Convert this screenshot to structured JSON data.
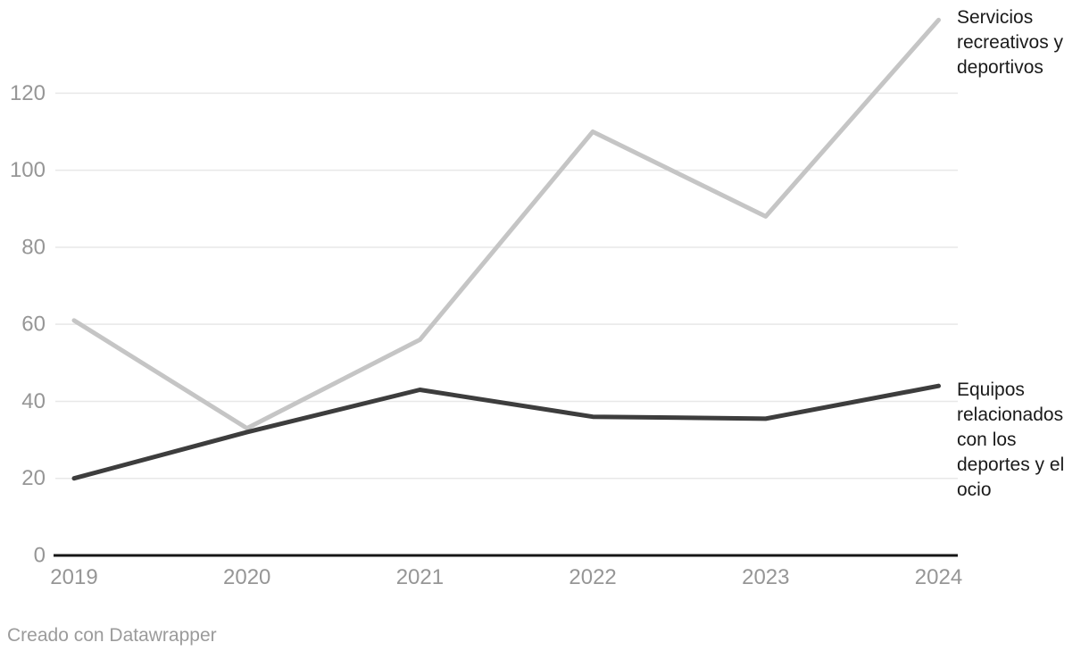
{
  "chart_data": {
    "type": "line",
    "x": [
      2019,
      2020,
      2021,
      2022,
      2023,
      2024
    ],
    "series": [
      {
        "name": "Servicios recreativos y deportivos",
        "values": [
          61,
          33,
          56,
          110,
          88,
          139
        ],
        "color": "#c5c5c5"
      },
      {
        "name": "Equipos relacionados con los deportes y el ocio",
        "values": [
          20,
          32,
          43,
          36,
          35.5,
          44
        ],
        "color": "#3d3d3d"
      }
    ],
    "title": "",
    "xlabel": "",
    "ylabel": "",
    "ylim": [
      0,
      140
    ],
    "yticks": [
      0,
      20,
      40,
      60,
      80,
      100,
      120
    ],
    "grid": "horizontal",
    "legend_position": "labels-right-of-lines"
  },
  "series_labels": {
    "servicios_lines": [
      "Servicios",
      "recreativos y",
      "deportivos"
    ],
    "equipos_lines": [
      "Equipos",
      "relacionados",
      "con los",
      "deportes y el",
      "ocio"
    ]
  },
  "footer": {
    "credit": "Creado con Datawrapper"
  },
  "colors": {
    "background": "#ffffff",
    "gridline": "#e8e8e8",
    "baseline": "#161616",
    "tick_text": "#969696",
    "series_light": "#c5c5c5",
    "series_dark": "#3d3d3d",
    "label_text": "#1a1a1a",
    "footer_text": "#9b9b9b"
  }
}
